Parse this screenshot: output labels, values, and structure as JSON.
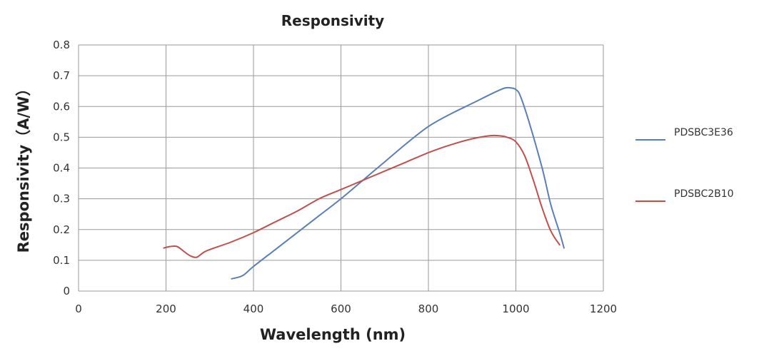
{
  "chart_data": {
    "type": "line",
    "title": "Responsivity",
    "xlabel": "Wavelength (nm)",
    "ylabel": "Responsivity（A/W）",
    "xlim": [
      0,
      1200
    ],
    "ylim": [
      0,
      0.8
    ],
    "xticks": [
      "0",
      "200",
      "400",
      "600",
      "800",
      "1000",
      "1200"
    ],
    "yticks": [
      "0",
      "0.1",
      "0.2",
      "0.3",
      "0.4",
      "0.5",
      "0.6",
      "0.7",
      "0.8"
    ],
    "grid": true,
    "legend_position": "right",
    "series": [
      {
        "name": "PDSBC3E36",
        "color": "#5b7fb5",
        "x": [
          350,
          375,
          400,
          450,
          500,
          550,
          600,
          650,
          700,
          750,
          800,
          850,
          900,
          950,
          975,
          990,
          1000,
          1010,
          1030,
          1060,
          1080,
          1100,
          1110
        ],
        "y": [
          0.04,
          0.05,
          0.08,
          0.135,
          0.19,
          0.245,
          0.3,
          0.36,
          0.42,
          0.48,
          0.535,
          0.575,
          0.61,
          0.645,
          0.66,
          0.66,
          0.655,
          0.635,
          0.55,
          0.4,
          0.28,
          0.19,
          0.14
        ]
      },
      {
        "name": "PDSBC2B10",
        "color": "#c0504d",
        "x": [
          195,
          210,
          225,
          240,
          255,
          270,
          285,
          300,
          350,
          400,
          450,
          500,
          550,
          600,
          650,
          700,
          750,
          800,
          850,
          900,
          940,
          960,
          980,
          1000,
          1020,
          1040,
          1060,
          1080,
          1100
        ],
        "y": [
          0.14,
          0.145,
          0.145,
          0.13,
          0.115,
          0.11,
          0.125,
          0.135,
          0.16,
          0.19,
          0.225,
          0.26,
          0.3,
          0.33,
          0.36,
          0.39,
          0.42,
          0.45,
          0.475,
          0.495,
          0.505,
          0.505,
          0.5,
          0.485,
          0.44,
          0.36,
          0.27,
          0.195,
          0.15
        ]
      }
    ]
  }
}
